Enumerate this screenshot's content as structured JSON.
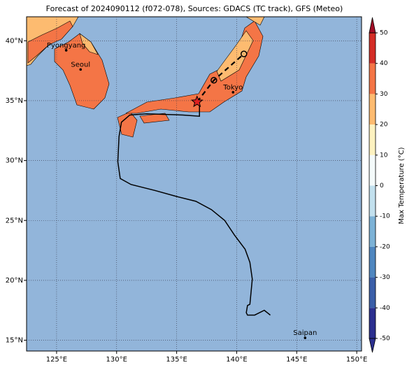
{
  "chart_data": {
    "type": "map",
    "title": "Forecast of 2024090112 (f072-078), Sources: GDACS (TC track), GFS (Meteo)",
    "xlim": [
      122.5,
      150.4
    ],
    "ylim": [
      14.1,
      42
    ],
    "xticks": [
      {
        "value": 125,
        "label": "125°E"
      },
      {
        "value": 130,
        "label": "130°E"
      },
      {
        "value": 135,
        "label": "135°E"
      },
      {
        "value": 140,
        "label": "140°E"
      },
      {
        "value": 145,
        "label": "145°E"
      },
      {
        "value": 150,
        "label": "150°E"
      }
    ],
    "yticks": [
      {
        "value": 15,
        "label": "15°N"
      },
      {
        "value": 20,
        "label": "20°N"
      },
      {
        "value": 25,
        "label": "25°N"
      },
      {
        "value": 30,
        "label": "30°N"
      },
      {
        "value": 35,
        "label": "35°N"
      },
      {
        "value": 40,
        "label": "40°N"
      }
    ],
    "grid": true,
    "track": {
      "color": "#000000",
      "lon": [
        142.8,
        142.3,
        141.5,
        140.9,
        140.8,
        140.9,
        141.1,
        141.3,
        141.1,
        140.7,
        139.8,
        139.0,
        137.9,
        136.6,
        135.0,
        133.2,
        131.2,
        130.3,
        130.1,
        130.2,
        130.4,
        131.1,
        132.5,
        135.5,
        136.9,
        136.9,
        136.7
      ],
      "lat": [
        17.1,
        17.5,
        17.1,
        17.1,
        17.3,
        17.9,
        18.0,
        20.1,
        21.5,
        22.6,
        23.8,
        25.0,
        25.9,
        26.6,
        27.0,
        27.5,
        28.0,
        28.5,
        29.9,
        32.0,
        33.2,
        33.8,
        33.9,
        33.8,
        33.7,
        34.7,
        34.9
      ]
    },
    "forecast": {
      "color": "#000000",
      "lon": [
        136.7,
        138.1,
        140.6
      ],
      "lat": [
        34.9,
        36.7,
        38.9
      ]
    },
    "cities": [
      {
        "name": "Pyongyang",
        "lon": 125.8,
        "lat": 39.2
      },
      {
        "name": "Seoul",
        "lon": 127.0,
        "lat": 37.6
      },
      {
        "name": "Tokyo",
        "lon": 139.7,
        "lat": 35.7
      },
      {
        "name": "Saipan",
        "lon": 145.7,
        "lat": 15.2
      }
    ],
    "colorbar": {
      "label": "Max Temperature (°C)",
      "lim": [
        -50,
        50
      ],
      "ticks": [
        -50,
        -40,
        -30,
        -20,
        -10,
        0,
        10,
        20,
        30,
        40,
        50
      ],
      "colors": [
        "#2b2f8f",
        "#3a5ea8",
        "#4f86bf",
        "#7cb2d6",
        "#c2e0ee",
        "#f4fafa",
        "#fdf2c0",
        "#fdbb70",
        "#f47546",
        "#d42d26",
        "#a20d26"
      ]
    }
  }
}
